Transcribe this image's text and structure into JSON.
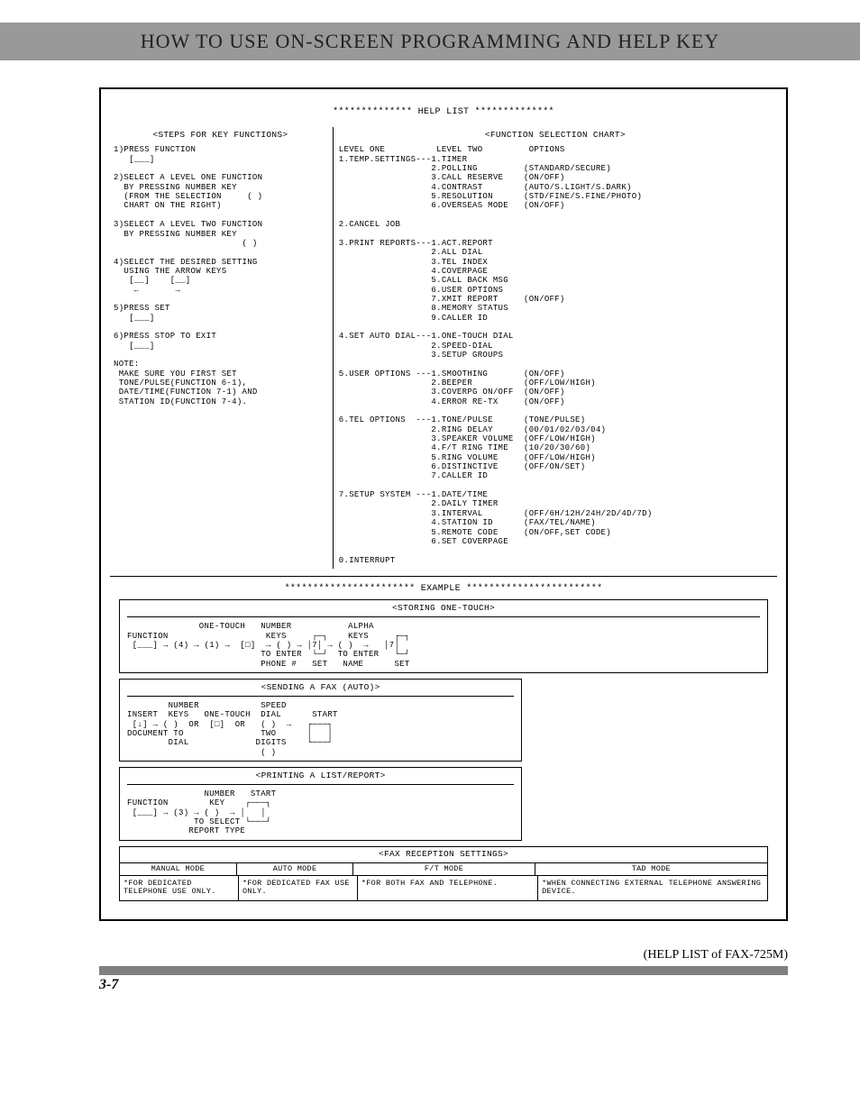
{
  "header": "HOW TO USE ON-SCREEN PROGRAMMING AND HELP KEY",
  "help_title": "************** HELP LIST **************",
  "steps_head": "<STEPS FOR KEY FUNCTIONS>",
  "chart_head": "<FUNCTION SELECTION CHART>",
  "steps_text": "1)PRESS FUNCTION\n   [___]\n\n2)SELECT A LEVEL ONE FUNCTION\n  BY PRESSING NUMBER KEY\n  (FROM THE SELECTION     ( )\n  CHART ON THE RIGHT)\n\n3)SELECT A LEVEL TWO FUNCTION\n  BY PRESSING NUMBER KEY\n                         ( )\n\n4)SELECT THE DESIRED SETTING\n  USING THE ARROW KEYS\n   [__]    [__]\n    ←       →\n\n5)PRESS SET\n   [___]\n\n6)PRESS STOP TO EXIT\n   [___]\n\nNOTE:\n MAKE SURE YOU FIRST SET\n TONE/PULSE(FUNCTION 6-1),\n DATE/TIME(FUNCTION 7-1) AND\n STATION ID(FUNCTION 7-4).",
  "chart_text": "LEVEL ONE          LEVEL TWO         OPTIONS\n1.TEMP.SETTINGS---1.TIMER\n                  2.POLLING         (STANDARD/SECURE)\n                  3.CALL RESERVE    (ON/OFF)\n                  4.CONTRAST        (AUTO/S.LIGHT/S.DARK)\n                  5.RESOLUTION      (STD/FINE/S.FINE/PHOTO)\n                  6.OVERSEAS MODE   (ON/OFF)\n\n2.CANCEL JOB\n\n3.PRINT REPORTS---1.ACT.REPORT\n                  2.ALL DIAL\n                  3.TEL INDEX\n                  4.COVERPAGE\n                  5.CALL BACK MSG\n                  6.USER OPTIONS\n                  7.XMIT REPORT     (ON/OFF)\n                  8.MEMORY STATUS\n                  9.CALLER ID\n\n4.SET AUTO DIAL---1.ONE-TOUCH DIAL\n                  2.SPEED-DIAL\n                  3.SETUP GROUPS\n\n5.USER OPTIONS ---1.SMOOTHING       (ON/OFF)\n                  2.BEEPER          (OFF/LOW/HIGH)\n                  3.COVERPG ON/OFF  (ON/OFF)\n                  4.ERROR RE-TX     (ON/OFF)\n\n6.TEL OPTIONS  ---1.TONE/PULSE      (TONE/PULSE)\n                  2.RING DELAY      (00/01/02/03/04)\n                  3.SPEAKER VOLUME  (OFF/LOW/HIGH)\n                  4.F/T RING TIME   (10/20/30/60)\n                  5.RING VOLUME     (OFF/LOW/HIGH)\n                  6.DISTINCTIVE     (OFF/ON/SET)\n                  7.CALLER ID\n\n7.SETUP SYSTEM ---1.DATE/TIME\n                  2.DAILY TIMER\n                  3.INTERVAL        (OFF/6H/12H/24H/2D/4D/7D)\n                  4.STATION ID      (FAX/TEL/NAME)\n                  5.REMOTE CODE     (ON/OFF,SET CODE)\n                  6.SET COVERPAGE\n\n0.INTERRUPT",
  "example_title": "*********************** EXAMPLE ************************",
  "ex1_head": "<STORING ONE-TOUCH>",
  "ex1_body": "              ONE-TOUCH   NUMBER           ALPHA\nFUNCTION                   KEYS     ┌─┐    KEYS     ┌─┐\n [___] → (4) → (1) →  [□]  → ( ) → │7│ → ( )  →   │7│\n                          TO ENTER  └─┘  TO ENTER   └─┘\n                          PHONE #   SET   NAME      SET",
  "ex2_head": "<SENDING A FAX (AUTO)>",
  "ex2_body": "        NUMBER            SPEED\nINSERT  KEYS   ONE-TOUCH  DIAL      START\n [↓] → ( )  OR  [□]  OR   ( )  →   ┌───┐\nDOCUMENT TO               TWO      │   │\n        DIAL             DIGITS    └───┘\n                          ( )",
  "ex3_head": "<PRINTING A LIST/REPORT>",
  "ex3_body": "               NUMBER   START\nFUNCTION        KEY    ┌───┐\n [___] → (3) → ( )  → │   │\n             TO SELECT └───┘\n            REPORT TYPE",
  "modes_head": "<FAX RECEPTION SETTINGS>",
  "mode1_label": "MANUAL MODE",
  "mode2_label": "AUTO MODE",
  "mode3_label": "F/T MODE",
  "mode4_label": "TAD MODE",
  "mode1_desc": "*FOR DEDICATED TELEPHONE USE ONLY.",
  "mode2_desc": "*FOR DEDICATED FAX USE ONLY.",
  "mode3_desc": "*FOR BOTH FAX AND TELEPHONE.",
  "mode4_desc": "*WHEN CONNECTING EXTERNAL TELEPHONE ANSWERING DEVICE.",
  "caption": "(HELP LIST of FAX-725M)",
  "page_num": "3-7",
  "colors": {
    "border": "#000000",
    "bg": "#ffffff"
  },
  "fontsize_mono": 9,
  "fontsize_header": 22
}
